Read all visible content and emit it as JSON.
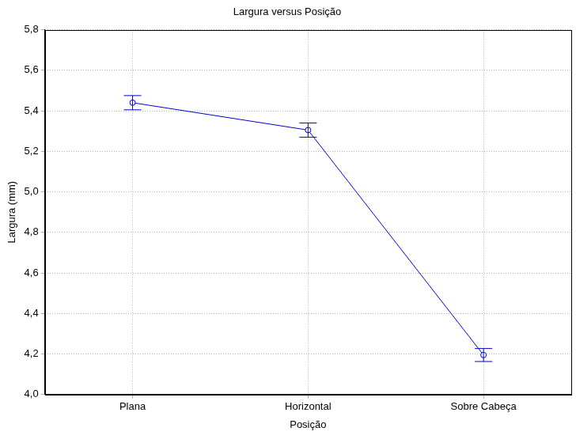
{
  "chart_data": {
    "type": "line",
    "title": "Largura versus Posição",
    "x_label": "Posição",
    "y_label": "Largura (mm)",
    "categories": [
      "Plana",
      "Horizontal",
      "Sobre Cabeça"
    ],
    "values": [
      5.44,
      5.305,
      4.195
    ],
    "errors": [
      0.035,
      0.035,
      0.032
    ],
    "color": "#0000cc",
    "marker": "circle",
    "line_style": "solid",
    "ylim": [
      4.0,
      5.8
    ],
    "yticks": [
      {
        "value": 4.0,
        "label": "4,0"
      },
      {
        "value": 4.2,
        "label": "4,2"
      },
      {
        "value": 4.4,
        "label": "4,4"
      },
      {
        "value": 4.6,
        "label": "4,6"
      },
      {
        "value": 4.8,
        "label": "4,8"
      },
      {
        "value": 5.0,
        "label": "5,0"
      },
      {
        "value": 5.2,
        "label": "5,2"
      },
      {
        "value": 5.4,
        "label": "5,4"
      },
      {
        "value": 5.6,
        "label": "5,6"
      },
      {
        "value": 5.8,
        "label": "5,8"
      }
    ],
    "grid": true
  }
}
